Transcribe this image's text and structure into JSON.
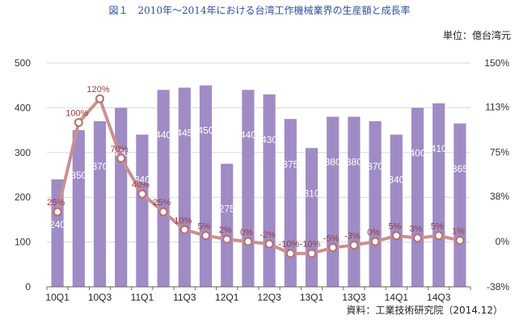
{
  "header": {
    "title": "図１　2010年～2014年における台湾工作機械業界の生産額と成長率",
    "unit": "単位：億台湾元"
  },
  "footer": {
    "source": "資料：工業技術研究院（2014.12）"
  },
  "colors": {
    "bar": "#9f8cc4",
    "line": "#c99190",
    "marker_fill": "#ffffff",
    "marker_stroke": "#b86e6e",
    "point_label": "#9b3a3a"
  },
  "chart_data": {
    "type": "bar",
    "categories": [
      "10Q1",
      "10Q2",
      "10Q3",
      "10Q4",
      "11Q1",
      "11Q2",
      "11Q3",
      "11Q4",
      "12Q1",
      "12Q2",
      "12Q3",
      "12Q4",
      "13Q1",
      "13Q2",
      "13Q3",
      "13Q4",
      "14Q1",
      "14Q2",
      "14Q3",
      "14Q4"
    ],
    "x_tick_labels": [
      "10Q1",
      "10Q3",
      "11Q1",
      "11Q3",
      "12Q1",
      "12Q3",
      "13Q1",
      "13Q3",
      "14Q1",
      "14Q3"
    ],
    "series": [
      {
        "type": "bar",
        "axis": "left",
        "values": [
          240,
          350,
          370,
          400,
          340,
          440,
          445,
          450,
          275,
          440,
          430,
          375,
          310,
          380,
          380,
          370,
          340,
          400,
          410,
          365
        ],
        "labels": [
          "240",
          "350",
          "370",
          "400",
          "340",
          "440",
          "445",
          "450",
          "275",
          "440",
          "430",
          "375",
          "310",
          "380",
          "380",
          "370",
          "340",
          "400",
          "410",
          "365"
        ]
      },
      {
        "type": "line",
        "axis": "right",
        "values": [
          25,
          100,
          120,
          70,
          40,
          25,
          10,
          5,
          2,
          0,
          -2,
          -10,
          -10,
          -5,
          -3,
          0,
          5,
          3,
          5,
          1
        ],
        "labels": [
          "25%",
          "100%",
          "120%",
          "70%",
          "40%",
          "25%",
          "10%",
          "5%",
          "2%",
          "0%",
          "-2%",
          "-10%",
          "-10%",
          "-5%",
          "-3%",
          "0%",
          "5%",
          "3%",
          "5%",
          "1%"
        ]
      }
    ],
    "y_left": {
      "ylim": [
        0,
        500
      ],
      "ticks": [
        0,
        100,
        200,
        300,
        400,
        500
      ],
      "tick_labels": [
        "0",
        "100",
        "200",
        "300",
        "400",
        "500"
      ]
    },
    "y_right": {
      "ylim": [
        -38,
        150
      ],
      "ticks": [
        -38,
        0,
        38,
        75,
        113,
        150
      ],
      "tick_labels": [
        "-38%",
        "0%",
        "38%",
        "75%",
        "113%",
        "150%"
      ]
    },
    "grid": true
  }
}
